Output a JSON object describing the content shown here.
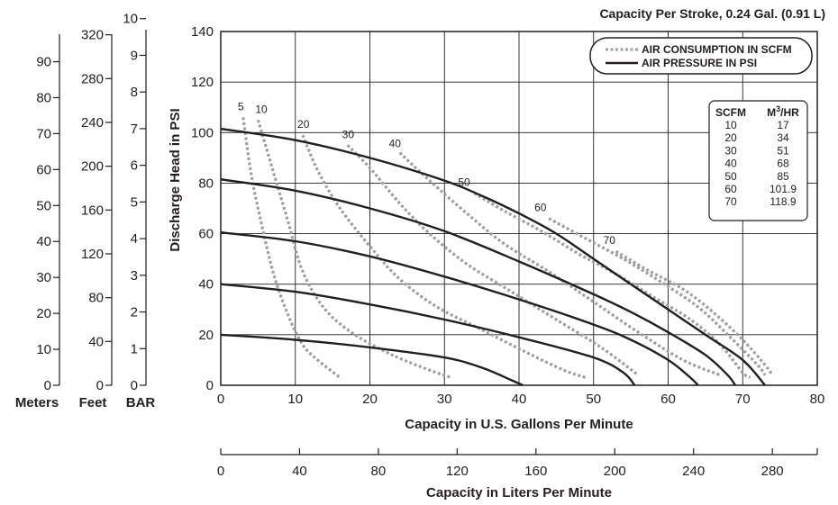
{
  "chart_data": {
    "type": "line",
    "title": "Capacity Per Stroke, 0.24 Gal. (0.91 L)",
    "xlabel": "Capacity in U.S. Gallons Per Minute",
    "ylabel": "Discharge Head in PSI",
    "xlim": [
      0,
      80
    ],
    "ylim": [
      0,
      140
    ],
    "x_ticks": [
      "0",
      "10",
      "20",
      "30",
      "40",
      "50",
      "60",
      "70",
      "80"
    ],
    "y_ticks": [
      "0",
      "20",
      "40",
      "60",
      "80",
      "100",
      "120",
      "140"
    ],
    "grid": true,
    "legend_position": "top-right",
    "legend": [
      {
        "label": "AIR CONSUMPTION IN SCFM",
        "style": "dotted",
        "color": "#9d9fa2"
      },
      {
        "label": "AIR PRESSURE IN PSI",
        "style": "solid",
        "color": "#231f20"
      }
    ],
    "pressure_series": [
      {
        "points": [
          [
            0,
            101.5
          ],
          [
            10,
            97
          ],
          [
            20,
            90
          ],
          [
            30,
            81
          ],
          [
            35,
            75
          ],
          [
            40,
            68
          ],
          [
            45,
            60
          ],
          [
            50,
            50
          ],
          [
            55,
            40
          ],
          [
            60,
            30
          ],
          [
            65,
            20
          ],
          [
            70,
            10
          ],
          [
            73,
            0
          ]
        ]
      },
      {
        "points": [
          [
            0,
            81.5
          ],
          [
            10,
            77
          ],
          [
            20,
            70
          ],
          [
            30,
            61
          ],
          [
            40,
            49
          ],
          [
            50,
            36
          ],
          [
            55,
            29
          ],
          [
            60,
            21
          ],
          [
            65,
            12
          ],
          [
            68,
            4
          ],
          [
            69,
            0
          ]
        ]
      },
      {
        "points": [
          [
            0,
            60.5
          ],
          [
            10,
            57
          ],
          [
            20,
            51
          ],
          [
            30,
            43
          ],
          [
            40,
            34
          ],
          [
            50,
            24
          ],
          [
            55,
            18
          ],
          [
            60,
            10
          ],
          [
            63,
            3
          ],
          [
            64,
            0
          ]
        ]
      },
      {
        "points": [
          [
            0,
            40
          ],
          [
            10,
            37
          ],
          [
            20,
            32
          ],
          [
            30,
            26
          ],
          [
            40,
            19
          ],
          [
            50,
            11
          ],
          [
            54,
            5
          ],
          [
            55.5,
            0
          ]
        ]
      },
      {
        "points": [
          [
            0,
            20
          ],
          [
            10,
            18
          ],
          [
            20,
            15
          ],
          [
            30,
            11
          ],
          [
            35,
            7
          ],
          [
            39,
            2
          ],
          [
            40.5,
            0
          ]
        ]
      }
    ],
    "air_series": [
      {
        "label": "5",
        "points": [
          [
            3,
            106
          ],
          [
            4,
            85
          ],
          [
            5,
            70
          ],
          [
            7,
            45
          ],
          [
            9,
            28
          ],
          [
            11,
            16
          ],
          [
            13,
            10
          ],
          [
            16,
            3
          ]
        ]
      },
      {
        "label": "10",
        "points": [
          [
            5,
            105
          ],
          [
            7,
            85
          ],
          [
            9,
            65
          ],
          [
            11,
            45
          ],
          [
            14,
            30
          ],
          [
            18,
            20
          ],
          [
            23,
            12
          ],
          [
            28,
            6
          ],
          [
            31,
            3
          ]
        ]
      },
      {
        "label": "20",
        "points": [
          [
            11,
            99
          ],
          [
            13,
            85
          ],
          [
            16,
            70
          ],
          [
            20,
            55
          ],
          [
            24,
            42
          ],
          [
            29,
            31
          ],
          [
            35,
            22
          ],
          [
            41,
            13
          ],
          [
            46,
            6
          ],
          [
            49,
            3
          ]
        ]
      },
      {
        "label": "30",
        "points": [
          [
            17,
            95
          ],
          [
            20,
            86
          ],
          [
            24,
            72
          ],
          [
            28,
            60
          ],
          [
            33,
            48
          ],
          [
            39,
            37
          ],
          [
            45,
            26
          ],
          [
            51,
            15
          ],
          [
            56,
            4
          ]
        ]
      },
      {
        "label": "40",
        "points": [
          [
            24,
            92
          ],
          [
            28,
            81
          ],
          [
            33,
            68
          ],
          [
            38,
            56
          ],
          [
            44,
            45
          ],
          [
            50,
            33
          ],
          [
            56,
            21
          ],
          [
            62,
            10
          ],
          [
            67,
            4
          ]
        ]
      },
      {
        "label": "50",
        "points": [
          [
            34,
            76
          ],
          [
            38,
            69
          ],
          [
            43,
            61
          ],
          [
            48,
            52
          ],
          [
            53,
            44
          ],
          [
            58,
            35
          ],
          [
            63,
            26
          ],
          [
            67,
            16
          ],
          [
            70,
            5
          ],
          [
            71,
            3
          ]
        ]
      },
      {
        "label": "60",
        "points": [
          [
            44,
            66
          ],
          [
            49,
            58
          ],
          [
            54,
            50
          ],
          [
            59,
            41
          ],
          [
            64,
            31
          ],
          [
            68,
            20
          ],
          [
            72,
            8
          ],
          [
            73,
            4
          ]
        ]
      },
      {
        "label": "70",
        "points": [
          [
            53,
            53
          ],
          [
            57,
            46
          ],
          [
            62,
            38
          ],
          [
            66,
            29
          ],
          [
            70,
            18
          ],
          [
            73,
            8
          ],
          [
            74,
            4
          ]
        ]
      }
    ],
    "air_label_positions_note": "",
    "conversion_table": {
      "headers": [
        "SCFM",
        "M3/HR"
      ],
      "rows": [
        [
          "10",
          "17"
        ],
        [
          "20",
          "34"
        ],
        [
          "30",
          "51"
        ],
        [
          "40",
          "68"
        ],
        [
          "50",
          "85"
        ],
        [
          "60",
          "101.9"
        ],
        [
          "70",
          "118.9"
        ]
      ]
    },
    "secondary_x_axis": {
      "label": "Capacity in Liters Per Minute",
      "ticks": [
        "0",
        "40",
        "80",
        "120",
        "160",
        "200",
        "240",
        "280"
      ],
      "range": [
        0,
        302.8
      ]
    },
    "secondary_y_axes": [
      {
        "label": "Meters",
        "ticks": [
          "0",
          "10",
          "20",
          "30",
          "40",
          "50",
          "60",
          "70",
          "80",
          "90"
        ],
        "range": [
          0,
          98.4
        ]
      },
      {
        "label": "Feet",
        "ticks": [
          "0",
          "40",
          "80",
          "120",
          "160",
          "200",
          "240",
          "280",
          "320"
        ],
        "range": [
          0,
          323
        ]
      },
      {
        "label": "BAR",
        "ticks": [
          "0",
          "1",
          "2",
          "3",
          "4",
          "5",
          "6",
          "7",
          "8",
          "9",
          "10"
        ],
        "range": [
          0,
          9.65
        ]
      }
    ]
  }
}
